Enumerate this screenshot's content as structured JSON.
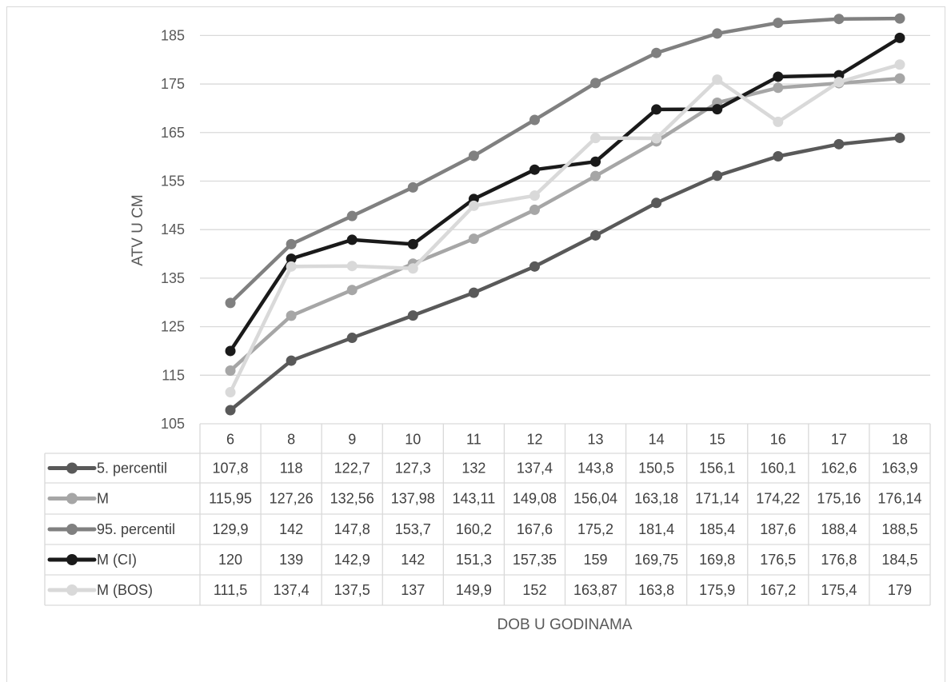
{
  "chart_data": {
    "type": "line",
    "title": "",
    "xlabel": "DOB U GODINAMA",
    "ylabel": "ATV U CM",
    "ylim": [
      105,
      190
    ],
    "yticks": [
      105,
      115,
      125,
      135,
      145,
      155,
      165,
      175,
      185
    ],
    "grid": "horizontal",
    "legend": "data-table",
    "categories": [
      "6",
      "8",
      "9",
      "10",
      "11",
      "12",
      "13",
      "14",
      "15",
      "16",
      "17",
      "18"
    ],
    "series": [
      {
        "name": "5. percentil",
        "color": "#595959",
        "values": [
          107.8,
          118,
          122.7,
          127.3,
          132,
          137.4,
          143.8,
          150.5,
          156.1,
          160.1,
          162.6,
          163.9
        ],
        "labels": [
          "107,8",
          "118",
          "122,7",
          "127,3",
          "132",
          "137,4",
          "143,8",
          "150,5",
          "156,1",
          "160,1",
          "162,6",
          "163,9"
        ]
      },
      {
        "name": "M",
        "color": "#a6a6a6",
        "values": [
          115.95,
          127.26,
          132.56,
          137.98,
          143.11,
          149.08,
          156.04,
          163.18,
          171.14,
          174.22,
          175.16,
          176.14
        ],
        "labels": [
          "115,95",
          "127,26",
          "132,56",
          "137,98",
          "143,11",
          "149,08",
          "156,04",
          "163,18",
          "171,14",
          "174,22",
          "175,16",
          "176,14"
        ]
      },
      {
        "name": "95. percentil",
        "color": "#808080",
        "values": [
          129.9,
          142,
          147.8,
          153.7,
          160.2,
          167.6,
          175.2,
          181.4,
          185.4,
          187.6,
          188.4,
          188.5
        ],
        "labels": [
          "129,9",
          "142",
          "147,8",
          "153,7",
          "160,2",
          "167,6",
          "175,2",
          "181,4",
          "185,4",
          "187,6",
          "188,4",
          "188,5"
        ]
      },
      {
        "name": "M (CI)",
        "color": "#1a1a1a",
        "values": [
          120,
          139,
          142.9,
          142,
          151.3,
          157.35,
          159,
          169.75,
          169.8,
          176.5,
          176.8,
          184.5
        ],
        "labels": [
          "120",
          "139",
          "142,9",
          "142",
          "151,3",
          "157,35",
          "159",
          "169,75",
          "169,8",
          "176,5",
          "176,8",
          "184,5"
        ]
      },
      {
        "name": "M (BOS)",
        "color": "#d9d9d9",
        "values": [
          111.5,
          137.4,
          137.5,
          137,
          149.9,
          152,
          163.87,
          163.8,
          175.9,
          167.2,
          175.4,
          179
        ],
        "labels": [
          "111,5",
          "137,4",
          "137,5",
          "137",
          "149,9",
          "152",
          "163,87",
          "163,8",
          "175,9",
          "167,2",
          "175,4",
          "179"
        ]
      }
    ]
  }
}
